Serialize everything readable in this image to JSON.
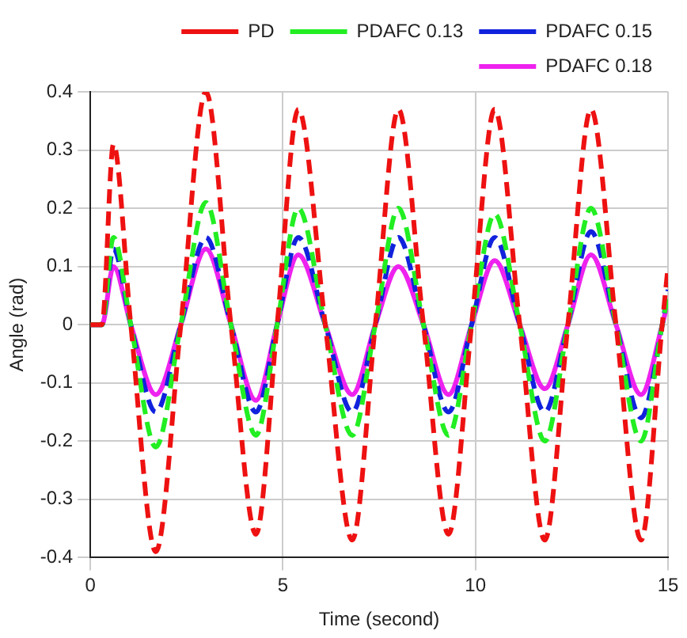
{
  "chart_data": {
    "type": "line",
    "xlabel": "Time (second)",
    "ylabel": "Angle (rad)",
    "x": [
      0,
      0.3,
      0.6,
      1.05,
      1.7,
      2.35,
      3.0,
      3.65,
      4.3,
      4.85,
      5.4,
      6.1,
      6.8,
      7.4,
      8.0,
      8.65,
      9.3,
      9.9,
      10.5,
      11.15,
      11.8,
      12.4,
      13.0,
      13.65,
      14.3,
      14.85,
      15
    ],
    "xlim": [
      0,
      15
    ],
    "xticks": [
      0,
      5,
      10,
      15
    ],
    "ylim": [
      -0.4,
      0.4
    ],
    "yticks": [
      -0.4,
      -0.3,
      -0.2,
      -0.1,
      0,
      0.1,
      0.2,
      0.3,
      0.4
    ],
    "grid": true,
    "legend": "top right",
    "marker": "none",
    "series": [
      {
        "name": "PD",
        "color": "#ee1111",
        "line_style": "dashed",
        "values": [
          0,
          0,
          0.31,
          0,
          -0.39,
          0,
          0.4,
          0,
          -0.36,
          0,
          0.37,
          0,
          -0.37,
          0,
          0.37,
          0,
          -0.36,
          0,
          0.37,
          0,
          -0.37,
          0,
          0.37,
          0,
          -0.37,
          0,
          0.1
        ]
      },
      {
        "name": "PDAFC 0.13",
        "color": "#22ee22",
        "line_style": "dashed",
        "values": [
          0,
          0,
          0.15,
          0,
          -0.21,
          0,
          0.21,
          0,
          -0.19,
          0,
          0.2,
          0,
          -0.19,
          0,
          0.2,
          0,
          -0.19,
          0,
          0.19,
          0,
          -0.2,
          0,
          0.2,
          0,
          -0.2,
          0,
          0.05
        ]
      },
      {
        "name": "PDAFC 0.15",
        "color": "#1122dd",
        "line_style": "dashed",
        "values": [
          0,
          0,
          0.13,
          0,
          -0.15,
          0,
          0.15,
          0,
          -0.15,
          0,
          0.15,
          0,
          -0.15,
          0,
          0.15,
          0,
          -0.15,
          0,
          0.15,
          0,
          -0.15,
          0,
          0.16,
          0,
          -0.16,
          0,
          0.06
        ]
      },
      {
        "name": "PDAFC 0.18",
        "color": "#ee22ee",
        "line_style": "solid",
        "values": [
          0,
          0,
          0.1,
          0,
          -0.12,
          0,
          0.13,
          0,
          -0.13,
          0,
          0.12,
          0,
          -0.12,
          0,
          0.1,
          0,
          -0.12,
          0,
          0.11,
          0,
          -0.11,
          0,
          0.12,
          0,
          -0.12,
          0,
          0.04
        ]
      }
    ]
  }
}
